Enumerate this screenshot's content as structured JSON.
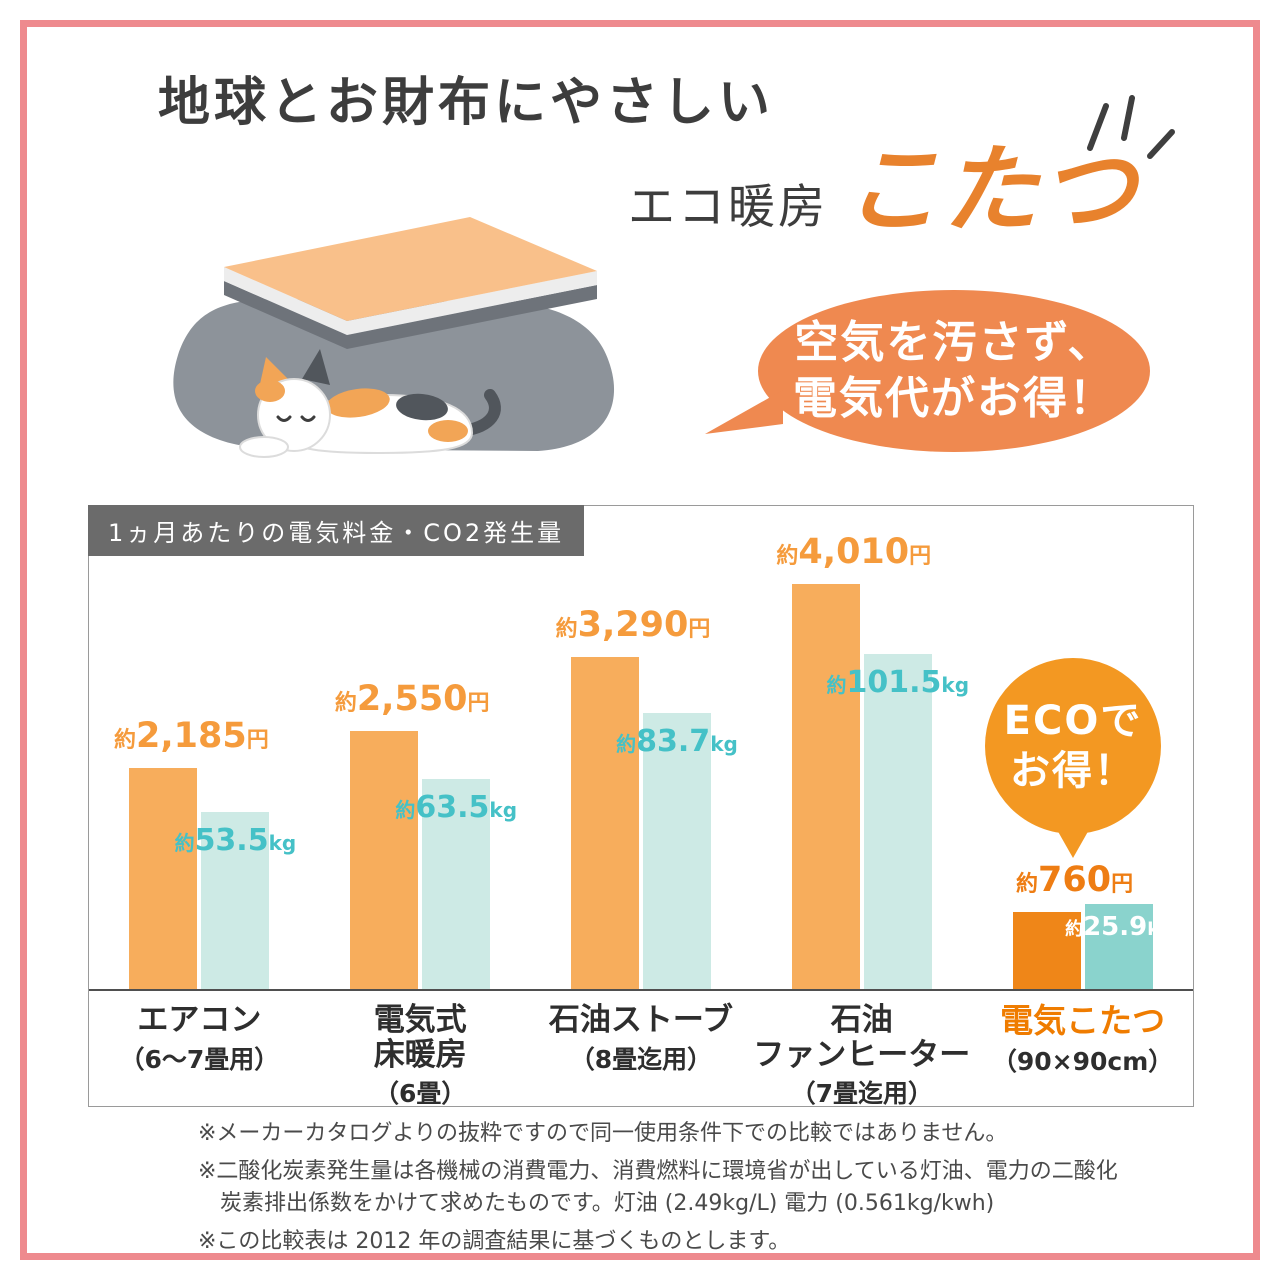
{
  "header": {
    "title": "地球とお財布にやさしい",
    "subtitle_prefix": "エコ暖房",
    "subtitle_main": "こたつ"
  },
  "bubble": {
    "line1": "空気を汚さず、",
    "line2": "電気代がお得！"
  },
  "eco_badge": {
    "line1": "ECOで",
    "line2": "お得！"
  },
  "chart_data": {
    "type": "bar",
    "title": "1ヵ月あたりの電気料金・CO2発生量",
    "categories": [
      "エアコン",
      "電気式\n床暖房",
      "石油ストーブ",
      "石油\nファンヒーター",
      "電気こたつ"
    ],
    "category_notes": [
      "（6～7畳用）",
      "（6畳）",
      "（8畳迄用）",
      "（7畳迄用）",
      "（90×90cm）"
    ],
    "highlight_index": 4,
    "series": [
      {
        "name": "電気料金（月額）",
        "prefix": "約",
        "unit": "円",
        "values": [
          2185,
          2550,
          3290,
          4010,
          760
        ],
        "display": [
          "2,185",
          "2,550",
          "3,290",
          "4,010",
          "760"
        ]
      },
      {
        "name": "CO2発生量（月間）",
        "prefix": "約",
        "unit": "kg",
        "values": [
          53.5,
          63.5,
          83.7,
          101.5,
          25.9
        ],
        "display": [
          "53.5",
          "63.5",
          "83.7",
          "101.5",
          "25.9"
        ]
      }
    ],
    "colors": {
      "price": "#f7ad5c",
      "price_highlight": "#ef8618",
      "co2": "#cdeae5",
      "co2_highlight": "#8ad3cd",
      "price_label": "#f59b3c",
      "price_label_highlight": "#ee7d13",
      "co2_label": "#45c1c7",
      "co2_label_highlight": "#ffffff"
    },
    "axis": {
      "grid": false,
      "baseline": true,
      "legend": "none"
    }
  },
  "footnotes": [
    "※メーカーカタログよりの抜粋ですので同一使用条件下での比較ではありません。",
    "※二酸化炭素発生量は各機械の消費電力、消費燃料に環境省が出している灯油、電力の二酸化\n　炭素排出係数をかけて求めたものです。灯油 (2.49kg/L) 電力 (0.561kg/kwh)",
    "※この比較表は 2012 年の調査結果に基づくものとします。"
  ]
}
